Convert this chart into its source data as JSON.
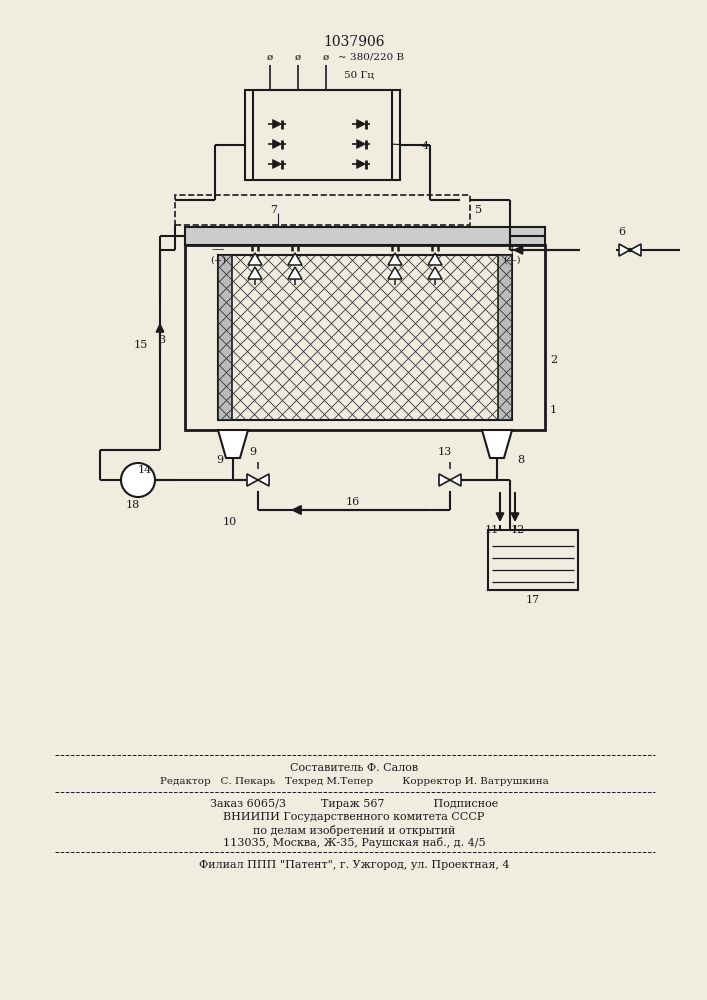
{
  "patent_number": "1037906",
  "bg_color": "#f0ece0",
  "line_color": "#1a1a1a",
  "title_fontsize": 10,
  "label_fontsize": 8,
  "footer_lines": [
    "Составитель Ф. Салов",
    "Редактор   С. Пекарь   Техред М.Тепер         Корректор И. Ватрушкина",
    "Заказ 6065/3          Тираж 567              Подписное",
    "ВНИИПИ Государственного комитета СССР",
    "по делам изобретений и открытий",
    "113035, Москва, Ж-35, Раушская наб., д. 4/5",
    "Филиал ППП \"Патент\", г. Ужгород, ул. Проектная, 4"
  ]
}
